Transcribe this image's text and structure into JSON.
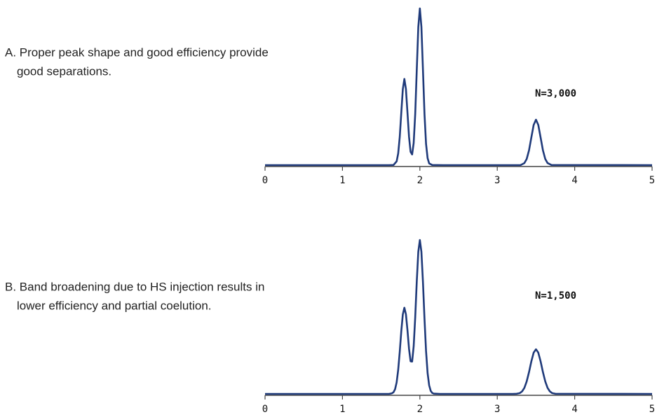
{
  "chart_data": [
    {
      "type": "line",
      "caption": [
        "A. Proper peak shape and good efficiency provide",
        "good separations."
      ],
      "annotation": "N=3,000",
      "color": "#1f3a7a",
      "xlim": [
        0,
        5
      ],
      "xticks": [
        0,
        1,
        2,
        3,
        4,
        5
      ],
      "ylim": [
        0,
        100
      ],
      "x": [
        0,
        1.6,
        1.66,
        1.7,
        1.72,
        1.74,
        1.76,
        1.78,
        1.8,
        1.82,
        1.84,
        1.86,
        1.88,
        1.9,
        1.92,
        1.94,
        1.96,
        1.98,
        2.0,
        2.02,
        2.04,
        2.06,
        2.08,
        2.1,
        2.12,
        2.16,
        2.3,
        3.3,
        3.35,
        3.38,
        3.41,
        3.44,
        3.47,
        3.5,
        3.53,
        3.56,
        3.59,
        3.62,
        3.65,
        3.7,
        5
      ],
      "values": [
        0,
        0,
        0.1,
        2.4,
        7.4,
        17.9,
        33.4,
        48.5,
        55,
        48.5,
        33.4,
        18.1,
        8.5,
        6.8,
        14.1,
        32.6,
        60.7,
        88.2,
        100,
        88.2,
        60.7,
        32.5,
        13.5,
        4.4,
        1.1,
        0.1,
        0,
        0,
        1.3,
        3.9,
        9.4,
        17.6,
        25.6,
        29,
        25.6,
        17.6,
        9.4,
        3.9,
        1.3,
        0.1,
        0
      ]
    },
    {
      "type": "line",
      "caption": [
        "B. Band broadening due to HS injection results in",
        "lower efficiency and partial coelution."
      ],
      "annotation": "N=1,500",
      "color": "#1f3a7a",
      "xlim": [
        0,
        5
      ],
      "xticks": [
        0,
        1,
        2,
        3,
        4,
        5
      ],
      "ylim": [
        0,
        100
      ],
      "x": [
        0,
        1.6,
        1.64,
        1.66,
        1.68,
        1.7,
        1.72,
        1.74,
        1.76,
        1.78,
        1.8,
        1.82,
        1.84,
        1.86,
        1.88,
        1.9,
        1.92,
        1.94,
        1.96,
        1.98,
        2.0,
        2.02,
        2.04,
        2.06,
        2.08,
        2.1,
        2.12,
        2.14,
        2.16,
        2.18,
        2.26,
        3.2,
        3.25,
        3.29,
        3.32,
        3.35,
        3.38,
        3.41,
        3.44,
        3.47,
        3.5,
        3.53,
        3.56,
        3.59,
        3.62,
        3.65,
        3.68,
        3.71,
        3.75,
        5
      ],
      "values": [
        0,
        0,
        0.4,
        1.1,
        3.1,
        7.5,
        15.6,
        27.3,
        40.7,
        51.7,
        56,
        51.7,
        41.3,
        29.3,
        21.2,
        21.0,
        30.9,
        49.8,
        73.0,
        92.4,
        100,
        92.3,
        72.6,
        48.7,
        27.8,
        13.5,
        5.6,
        2.0,
        0.6,
        0.2,
        0,
        0,
        0.1,
        0.5,
        1.6,
        3.9,
        8.1,
        14.1,
        21.1,
        26.8,
        29,
        26.8,
        21.1,
        14.1,
        8.1,
        3.9,
        1.6,
        0.5,
        0.1,
        0
      ]
    }
  ]
}
